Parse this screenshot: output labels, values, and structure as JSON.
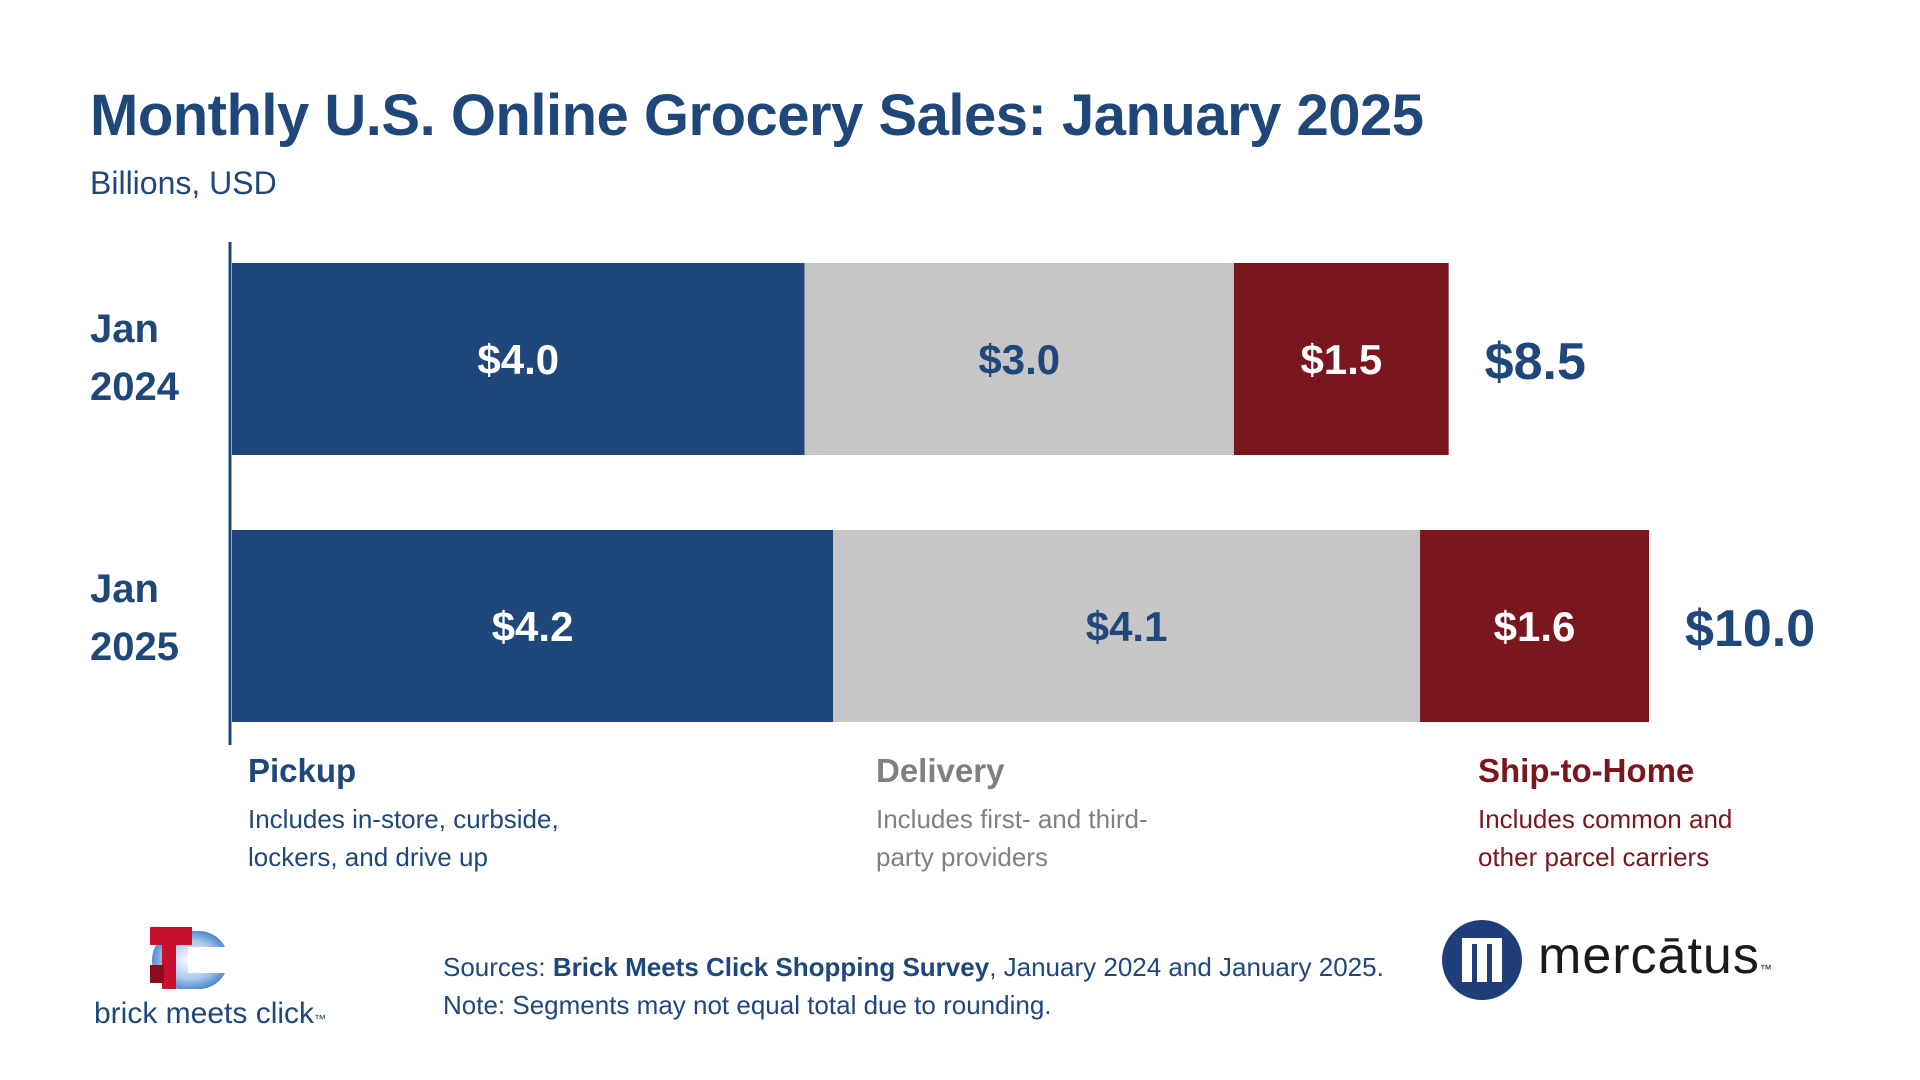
{
  "title": "Monthly U.S. Online Grocery Sales: January 2025",
  "subtitle": "Billions, USD",
  "colors": {
    "pickup": "#20477a",
    "delivery": "#c6c6c6",
    "ship_to_home": "#7a161e",
    "text_navy": "#1f477a",
    "text_gray": "#808080",
    "text_red": "#7a161e"
  },
  "chart_data": {
    "type": "bar",
    "orientation": "horizontal",
    "stacked": true,
    "categories": [
      "Jan 2024",
      "Jan 2025"
    ],
    "category_lines": [
      [
        "Jan",
        "2024"
      ],
      [
        "Jan",
        "2025"
      ]
    ],
    "series": [
      {
        "name": "Pickup",
        "values": [
          4.0,
          4.2
        ],
        "labels": [
          "$4.0",
          "$4.2"
        ]
      },
      {
        "name": "Delivery",
        "values": [
          3.0,
          4.1
        ],
        "labels": [
          "$3.0",
          "$4.1"
        ]
      },
      {
        "name": "Ship-to-Home",
        "values": [
          1.5,
          1.6
        ],
        "labels": [
          "$1.5",
          "$1.6"
        ]
      }
    ],
    "totals": [
      8.5,
      10.0
    ],
    "total_labels": [
      "$8.5",
      "$10.0"
    ],
    "xlim": [
      0,
      10.2
    ]
  },
  "legend": [
    {
      "title": "Pickup",
      "desc_lines": [
        "Includes in-store, curbside,",
        "lockers, and drive up"
      ]
    },
    {
      "title": "Delivery",
      "desc_lines": [
        "Includes first- and third-",
        "party providers"
      ]
    },
    {
      "title": "Ship-to-Home",
      "desc_lines": [
        "Includes common and",
        "other parcel carriers"
      ]
    }
  ],
  "footer": {
    "sources_prefix": "Sources: ",
    "sources_bold": "Brick Meets Click Shopping Survey",
    "sources_suffix": ", January 2024 and January 2025.",
    "note": "Note: Segments may not equal total due to rounding."
  },
  "logos": {
    "bmc_text": "brick meets click",
    "bmc_tm": "™",
    "mercatus_text": "mercātus",
    "mercatus_tm": "™"
  }
}
